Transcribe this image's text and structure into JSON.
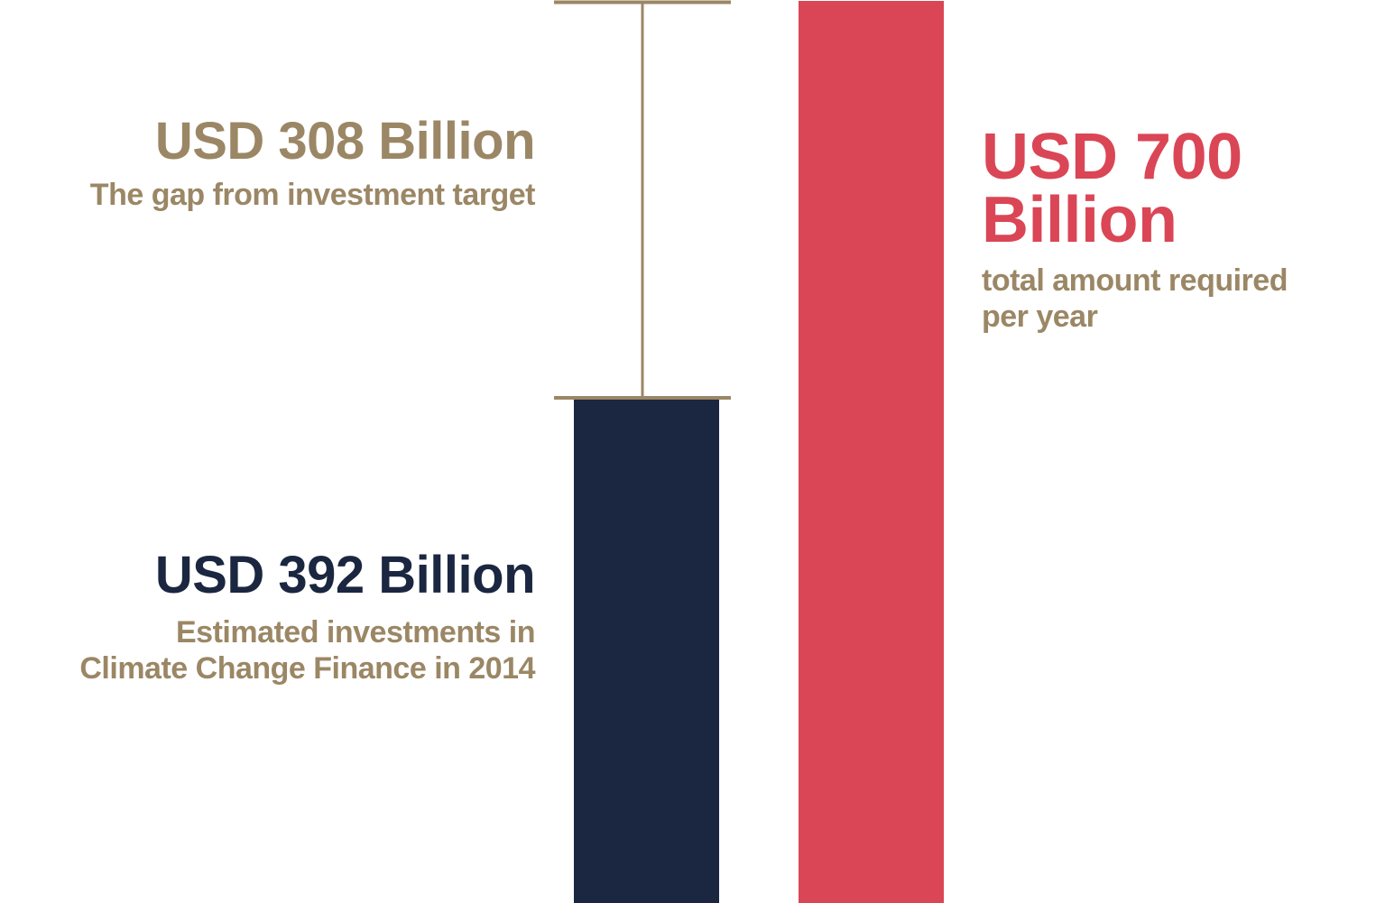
{
  "chart_data": {
    "type": "bar",
    "categories": [
      "Estimated investments in Climate Change Finance in 2014",
      "total amount required per year"
    ],
    "unit": "USD Billion",
    "ylim": [
      0,
      700
    ],
    "bars": [
      {
        "key": "current",
        "value": 392,
        "color": "#1b2640"
      },
      {
        "key": "required",
        "value": 700,
        "color": "#da4655"
      }
    ],
    "gap": {
      "value": 308,
      "from": 392,
      "to": 700,
      "color": "#9b8765"
    },
    "grid": false,
    "legend": "none"
  },
  "labels": {
    "gap_value": "USD 308 Billion",
    "gap_desc": "The gap from investment target",
    "current_value": "USD 392 Billion",
    "current_desc_line1": "Estimated investments in",
    "current_desc_line2": "Climate Change Finance in 2014",
    "required_value_line1": "USD 700",
    "required_value_line2": "Billion",
    "required_desc_line1": "total amount required",
    "required_desc_line2": "per year"
  }
}
